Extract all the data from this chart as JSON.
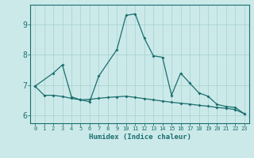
{
  "xlabel": "Humidex (Indice chaleur)",
  "background_color": "#cce9e9",
  "grid_color": "#aad4d4",
  "line_color": "#1a6e6e",
  "xlim_min": -0.5,
  "xlim_max": 23.5,
  "ylim_min": 5.75,
  "ylim_max": 9.65,
  "ytick_values": [
    6,
    7,
    8,
    9
  ],
  "ytick_labels": [
    "6",
    "7",
    "8",
    "9"
  ],
  "xtick_values": [
    0,
    1,
    2,
    3,
    4,
    5,
    6,
    7,
    8,
    9,
    10,
    11,
    12,
    13,
    14,
    15,
    16,
    17,
    18,
    19,
    20,
    21,
    22,
    23
  ],
  "xtick_labels": [
    "0",
    "1",
    "2",
    "3",
    "4",
    "5",
    "6",
    "7",
    "8",
    "9",
    "10",
    "11",
    "12",
    "13",
    "14",
    "15",
    "16",
    "17",
    "18",
    "19",
    "20",
    "21",
    "22",
    "23"
  ],
  "line1_x": [
    0,
    1,
    2,
    3,
    4,
    5,
    6,
    7,
    8,
    9,
    10,
    11,
    12,
    13,
    14,
    15,
    16,
    17,
    18,
    19,
    20,
    21,
    22,
    23
  ],
  "line1_y": [
    6.97,
    6.67,
    6.67,
    6.63,
    6.57,
    6.52,
    6.54,
    6.57,
    6.6,
    6.62,
    6.64,
    6.6,
    6.56,
    6.52,
    6.48,
    6.44,
    6.41,
    6.38,
    6.34,
    6.31,
    6.27,
    6.24,
    6.2,
    6.06
  ],
  "line2_x": [
    0,
    2,
    3,
    4,
    5,
    6,
    7,
    9,
    10,
    11,
    12,
    13,
    14,
    15,
    16,
    17,
    18,
    19,
    20,
    21,
    22,
    23
  ],
  "line2_y": [
    6.97,
    7.4,
    7.67,
    6.62,
    6.52,
    6.46,
    7.3,
    8.18,
    9.3,
    9.35,
    8.55,
    7.97,
    7.92,
    6.67,
    7.4,
    7.07,
    6.75,
    6.64,
    6.37,
    6.3,
    6.27,
    6.06
  ]
}
